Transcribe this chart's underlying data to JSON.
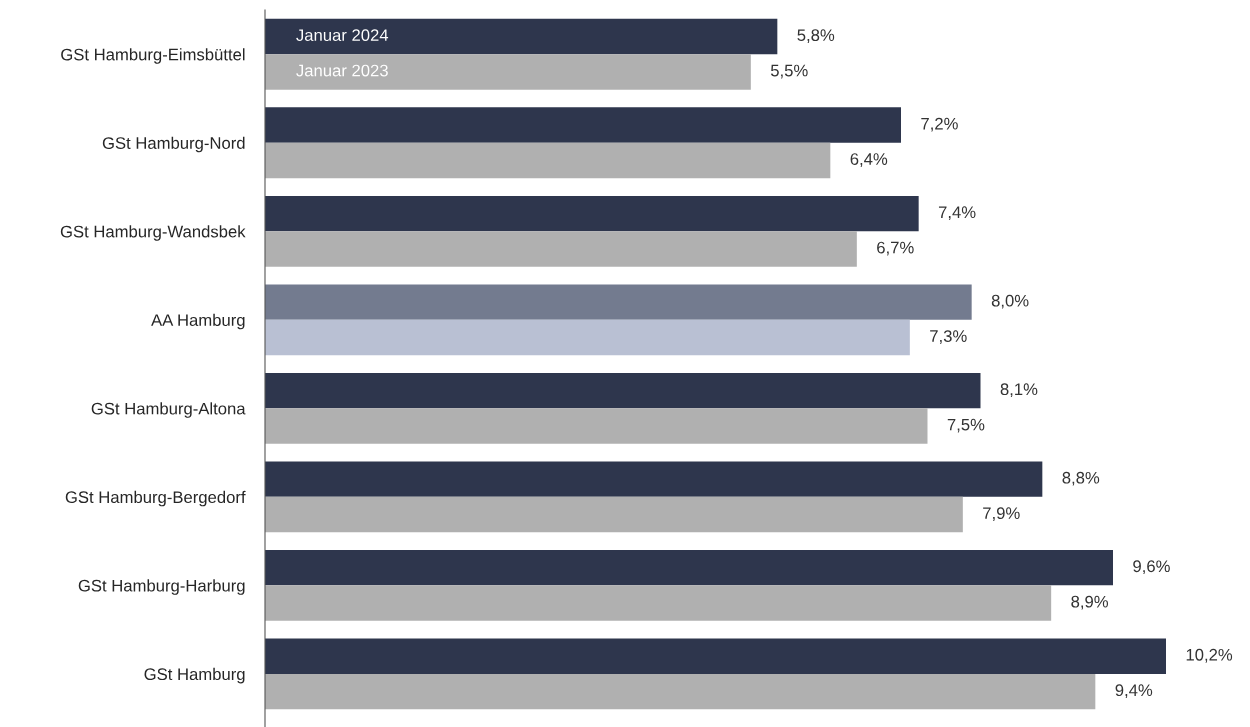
{
  "chart_data": {
    "type": "bar",
    "orientation": "horizontal",
    "categories": [
      "GSt Hamburg-Eimsbüttel",
      "GSt Hamburg-Nord",
      "GSt Hamburg-Wandsbek",
      "AA Hamburg",
      "GSt Hamburg-Altona",
      "GSt Hamburg-Bergedorf",
      "GSt Hamburg-Harburg",
      "GSt Hamburg"
    ],
    "series": [
      {
        "name": "Januar 2024",
        "colors": [
          "#2e364d",
          "#2e364d",
          "#2e364d",
          "#737b8f",
          "#2e364d",
          "#2e364d",
          "#2e364d",
          "#2e364d"
        ],
        "values": [
          5.8,
          7.2,
          7.4,
          8.0,
          8.1,
          8.8,
          9.6,
          10.2
        ],
        "value_labels": [
          "5,8%",
          "7,2%",
          "7,4%",
          "8,0%",
          "8,1%",
          "8,8%",
          "9,6%",
          "10,2%"
        ]
      },
      {
        "name": "Januar 2023",
        "colors": [
          "#b0b0b0",
          "#b0b0b0",
          "#b0b0b0",
          "#b9c0d3",
          "#b0b0b0",
          "#b0b0b0",
          "#b0b0b0",
          "#b0b0b0"
        ],
        "values": [
          5.5,
          6.4,
          6.7,
          7.3,
          7.5,
          7.9,
          8.9,
          9.4
        ],
        "value_labels": [
          "5,5%",
          "6,4%",
          "6,7%",
          "7,3%",
          "7,5%",
          "7,9%",
          "8,9%",
          "9,4%"
        ]
      }
    ],
    "tick_labels": "y",
    "grid": false
  }
}
